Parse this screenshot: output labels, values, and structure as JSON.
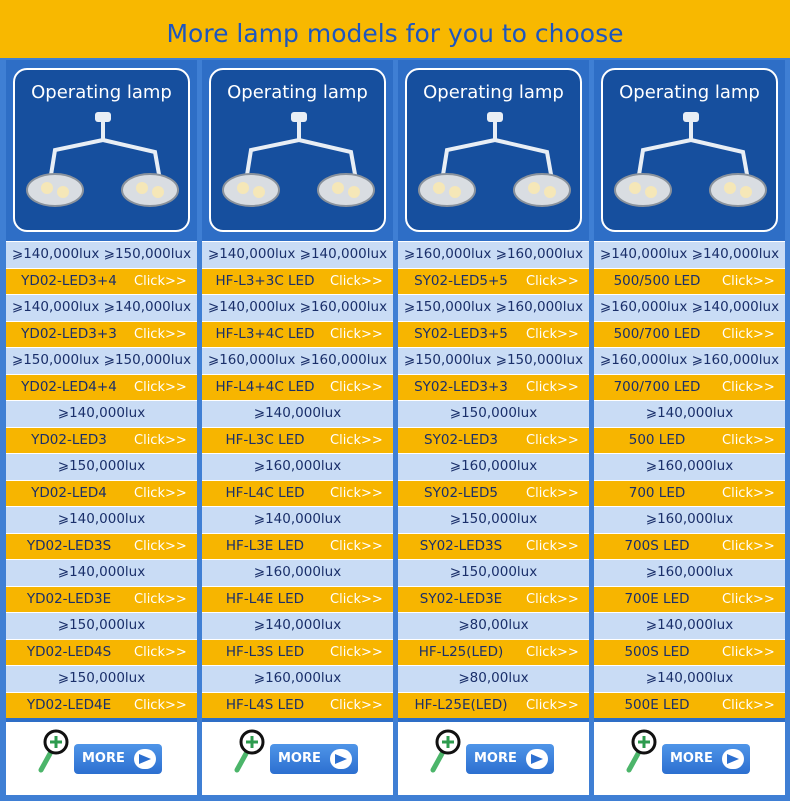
{
  "header": {
    "title": "More lamp models for you to choose"
  },
  "columns": [
    {
      "card_title": "Operating lamp",
      "more": "MORE",
      "rows": [
        {
          "lux": "⩾140,000lux ⩾150,000lux",
          "model": "YD02-LED3+4",
          "link": "Click>>"
        },
        {
          "lux": "⩾140,000lux ⩾140,000lux",
          "model": "YD02-LED3+3",
          "link": "Click>>"
        },
        {
          "lux": "⩾150,000lux ⩾150,000lux",
          "model": "YD02-LED4+4",
          "link": "Click>>"
        },
        {
          "lux": "⩾140,000lux",
          "model": "YD02-LED3",
          "link": "Click>>"
        },
        {
          "lux": "⩾150,000lux",
          "model": "YD02-LED4",
          "link": "Click>>"
        },
        {
          "lux": "⩾140,000lux",
          "model": "YD02-LED3S",
          "link": "Click>>"
        },
        {
          "lux": "⩾140,000lux",
          "model": "YD02-LED3E",
          "link": "Click>>"
        },
        {
          "lux": "⩾150,000lux",
          "model": "YD02-LED4S",
          "link": "Click>>"
        },
        {
          "lux": "⩾150,000lux",
          "model": "YD02-LED4E",
          "link": "Click>>"
        }
      ]
    },
    {
      "card_title": "Operating lamp",
      "more": "MORE",
      "rows": [
        {
          "lux": "⩾140,000lux ⩾140,000lux",
          "model": "HF-L3+3C LED",
          "link": "Click>>"
        },
        {
          "lux": "⩾140,000lux ⩾160,000lux",
          "model": "HF-L3+4C LED",
          "link": "Click>>"
        },
        {
          "lux": "⩾160,000lux ⩾160,000lux",
          "model": "HF-L4+4C LED",
          "link": "Click>>"
        },
        {
          "lux": "⩾140,000lux",
          "model": "HF-L3C LED",
          "link": "Click>>"
        },
        {
          "lux": "⩾160,000lux",
          "model": "HF-L4C LED",
          "link": "Click>>"
        },
        {
          "lux": "⩾140,000lux",
          "model": "HF-L3E LED",
          "link": "Click>>"
        },
        {
          "lux": "⩾160,000lux",
          "model": "HF-L4E LED",
          "link": "Click>>"
        },
        {
          "lux": "⩾140,000lux",
          "model": "HF-L3S LED",
          "link": "Click>>"
        },
        {
          "lux": "⩾160,000lux",
          "model": "HF-L4S LED",
          "link": "Click>>"
        }
      ]
    },
    {
      "card_title": "Operating lamp",
      "more": "MORE",
      "rows": [
        {
          "lux": "⩾160,000lux ⩾160,000lux",
          "model": "SY02-LED5+5",
          "link": "Click>>"
        },
        {
          "lux": "⩾150,000lux ⩾160,000lux",
          "model": "SY02-LED3+5",
          "link": "Click>>"
        },
        {
          "lux": "⩾150,000lux ⩾150,000lux",
          "model": "SY02-LED3+3",
          "link": "Click>>"
        },
        {
          "lux": "⩾150,000lux",
          "model": "SY02-LED3",
          "link": "Click>>"
        },
        {
          "lux": "⩾160,000lux",
          "model": "SY02-LED5",
          "link": "Click>>"
        },
        {
          "lux": "⩾150,000lux",
          "model": "SY02-LED3S",
          "link": "Click>>"
        },
        {
          "lux": "⩾150,000lux",
          "model": "SY02-LED3E",
          "link": "Click>>"
        },
        {
          "lux": "⩾80,00lux",
          "model": "HF-L25(LED)",
          "link": "Click>>"
        },
        {
          "lux": "⩾80,00lux",
          "model": "HF-L25E(LED)",
          "link": "Click>>"
        }
      ]
    },
    {
      "card_title": "Operating lamp",
      "more": "MORE",
      "rows": [
        {
          "lux": "⩾140,000lux ⩾140,000lux",
          "model": "500/500 LED",
          "link": "Click>>"
        },
        {
          "lux": "⩾160,000lux ⩾140,000lux",
          "model": "500/700 LED",
          "link": "Click>>"
        },
        {
          "lux": "⩾160,000lux ⩾160,000lux",
          "model": "700/700 LED",
          "link": "Click>>"
        },
        {
          "lux": "⩾140,000lux",
          "model": "500 LED",
          "link": "Click>>"
        },
        {
          "lux": "⩾160,000lux",
          "model": "700 LED",
          "link": "Click>>"
        },
        {
          "lux": "⩾160,000lux",
          "model": "700S LED",
          "link": "Click>>"
        },
        {
          "lux": "⩾160,000lux",
          "model": "700E LED",
          "link": "Click>>"
        },
        {
          "lux": "⩾140,000lux",
          "model": "500S LED",
          "link": "Click>>"
        },
        {
          "lux": "⩾140,000lux",
          "model": "500E LED",
          "link": "Click>>"
        }
      ]
    }
  ]
}
